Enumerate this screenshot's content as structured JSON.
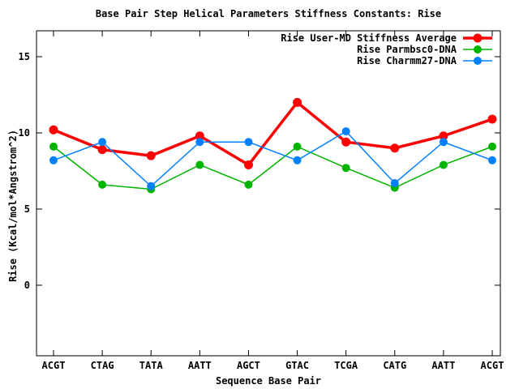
{
  "chart_data": {
    "type": "line",
    "title": "Base Pair Step Helical Parameters Stiffness Constants: Rise",
    "xlabel": "Sequence Base Pair",
    "ylabel": "Rise (Kcal/mol*Angstrom^2)",
    "categories": [
      "ACGT",
      "CTAG",
      "TATA",
      "AATT",
      "AGCT",
      "GTAC",
      "TCGA",
      "CATG",
      "AATT",
      "ACGT"
    ],
    "series": [
      {
        "name": "Rise User-MD Stiffness Average",
        "color": "#ff0000",
        "line_width": 3.5,
        "marker": "circle",
        "marker_size": 5.5,
        "values": [
          10.2,
          8.9,
          8.5,
          9.8,
          7.9,
          12.0,
          9.4,
          9.0,
          9.8,
          10.9
        ]
      },
      {
        "name": "Rise Parmbsc0-DNA",
        "color": "#00b400",
        "line_width": 1.5,
        "marker": "circle",
        "marker_size": 5,
        "values": [
          9.1,
          6.6,
          6.3,
          7.9,
          6.6,
          9.1,
          7.7,
          6.4,
          7.9,
          9.1
        ]
      },
      {
        "name": "Rise Charmm27-DNA",
        "color": "#0080ff",
        "line_width": 1.5,
        "marker": "circle",
        "marker_size": 5,
        "values": [
          8.2,
          9.4,
          6.5,
          9.4,
          9.4,
          8.2,
          10.1,
          6.7,
          9.4,
          8.2
        ]
      }
    ],
    "ylim": [
      -4.63,
      16.7
    ],
    "yticks": [
      0,
      5,
      10,
      15
    ],
    "legend_position": "top-right",
    "grid": false,
    "background": "#ffffff",
    "border_color": "#000000",
    "text_color": "#000000"
  }
}
